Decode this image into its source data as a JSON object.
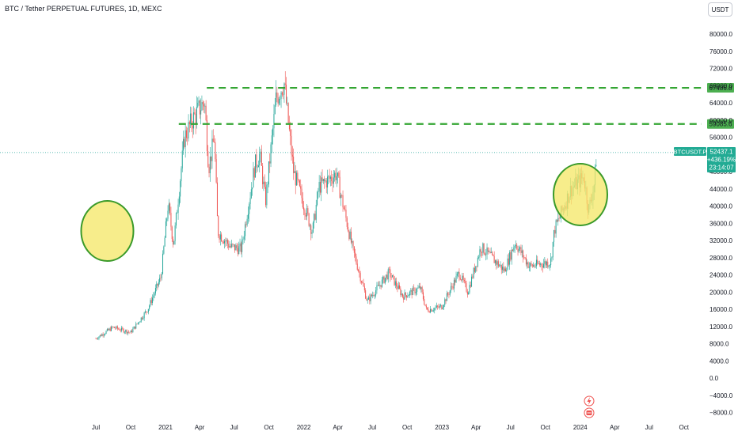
{
  "header": {
    "title": "BTC / Tether PERPETUAL FUTURES, 1D, MEXC",
    "currency_button": "USDT"
  },
  "colors": {
    "up": "#26a69a",
    "down": "#ef5350",
    "level_line": "#33a532",
    "level_label_bg": "#4caf50",
    "price_label_bg": "#22ab94",
    "highlight_fill": "#f5e86a",
    "highlight_stroke": "#3a9a2a"
  },
  "chart_data": {
    "type": "candlestick",
    "title": "BTC / Tether PERPETUAL FUTURES, 1D, MEXC",
    "symbol": "BTCUSDT.P",
    "x_ticks": [
      "Jul",
      "Oct",
      "2021",
      "Apr",
      "Jul",
      "Oct",
      "2022",
      "Apr",
      "Jul",
      "Oct",
      "2023",
      "Apr",
      "Jul",
      "Oct",
      "2024",
      "Apr",
      "Jul",
      "Oct"
    ],
    "y_ticks": [
      "80000.0",
      "76000.0",
      "72000.0",
      "68000.0",
      "64000.0",
      "60000.0",
      "56000.0",
      "52000.0",
      "48000.0",
      "44000.0",
      "40000.0",
      "36000.0",
      "32000.0",
      "28000.0",
      "24000.0",
      "20000.0",
      "16000.0",
      "12000.0",
      "8000.0",
      "4000.0",
      "0.0",
      "−4000.0",
      "−8000.0"
    ],
    "ylim": [
      -8000,
      80000
    ],
    "price_path": [
      [
        "2020-07-01",
        9200
      ],
      [
        "2020-08-15",
        11800
      ],
      [
        "2020-10-01",
        10600
      ],
      [
        "2020-11-15",
        16000
      ],
      [
        "2020-12-20",
        23500
      ],
      [
        "2021-01-08",
        40500
      ],
      [
        "2021-01-22",
        31000
      ],
      [
        "2021-02-20",
        56000
      ],
      [
        "2021-03-13",
        60000
      ],
      [
        "2021-04-14",
        64500
      ],
      [
        "2021-04-25",
        49000
      ],
      [
        "2021-05-10",
        56000
      ],
      [
        "2021-05-19",
        34000
      ],
      [
        "2021-06-22",
        30500
      ],
      [
        "2021-07-20",
        30000
      ],
      [
        "2021-08-25",
        49500
      ],
      [
        "2021-09-07",
        52000
      ],
      [
        "2021-09-22",
        41000
      ],
      [
        "2021-10-20",
        65000
      ],
      [
        "2021-11-10",
        68800
      ],
      [
        "2021-12-05",
        48000
      ],
      [
        "2022-01-24",
        34000
      ],
      [
        "2022-02-10",
        44500
      ],
      [
        "2022-03-28",
        47500
      ],
      [
        "2022-05-10",
        30000
      ],
      [
        "2022-06-18",
        17800
      ],
      [
        "2022-08-14",
        24500
      ],
      [
        "2022-09-20",
        19000
      ],
      [
        "2022-11-05",
        21000
      ],
      [
        "2022-11-21",
        15800
      ],
      [
        "2022-12-31",
        16600
      ],
      [
        "2023-02-15",
        24500
      ],
      [
        "2023-03-10",
        20000
      ],
      [
        "2023-04-14",
        30500
      ],
      [
        "2023-06-15",
        25000
      ],
      [
        "2023-07-13",
        31500
      ],
      [
        "2023-08-20",
        26000
      ],
      [
        "2023-10-15",
        27000
      ],
      [
        "2023-10-25",
        34500
      ],
      [
        "2023-12-08",
        44000
      ],
      [
        "2024-01-11",
        46800
      ],
      [
        "2024-01-23",
        39000
      ],
      [
        "2024-02-08",
        45500
      ],
      [
        "2024-02-13",
        52437
      ]
    ],
    "levels": [
      {
        "value": 67486.8,
        "label": "67486.8"
      },
      {
        "value": 59085.6,
        "label": "59085.6"
      }
    ],
    "last_price": {
      "symbol": "BTCUSDT.P",
      "value": "52437.1",
      "change": "+436.19%",
      "countdown": "23:14:07"
    },
    "highlights": [
      "ellipse around the early-2021 rally",
      "ellipse around the early-2024 rally"
    ],
    "markers": [
      "lightning-icon",
      "earnings-icon"
    ],
    "grid": false
  }
}
